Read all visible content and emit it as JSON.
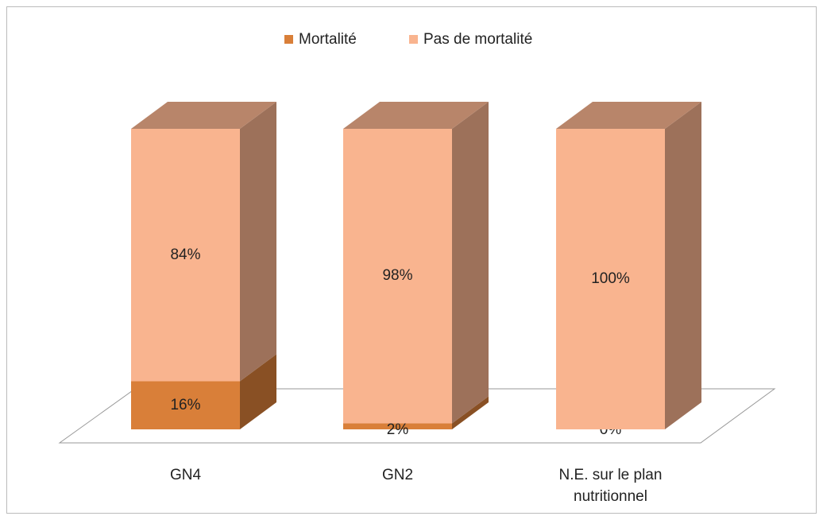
{
  "chart_data": {
    "type": "bar",
    "stacked": true,
    "categories": [
      "GN4",
      "GN2",
      "N.E. sur le plan nutritionnel"
    ],
    "series": [
      {
        "name": "Mortalité",
        "color": "#d97f39",
        "values": [
          16,
          2,
          0
        ],
        "value_labels": [
          "16%",
          "2%",
          "0%"
        ]
      },
      {
        "name": "Pas de mortalité",
        "color": "#f9b48f",
        "values": [
          84,
          98,
          100
        ],
        "value_labels": [
          "84%",
          "98%",
          "100%"
        ]
      }
    ],
    "legend": "top"
  }
}
